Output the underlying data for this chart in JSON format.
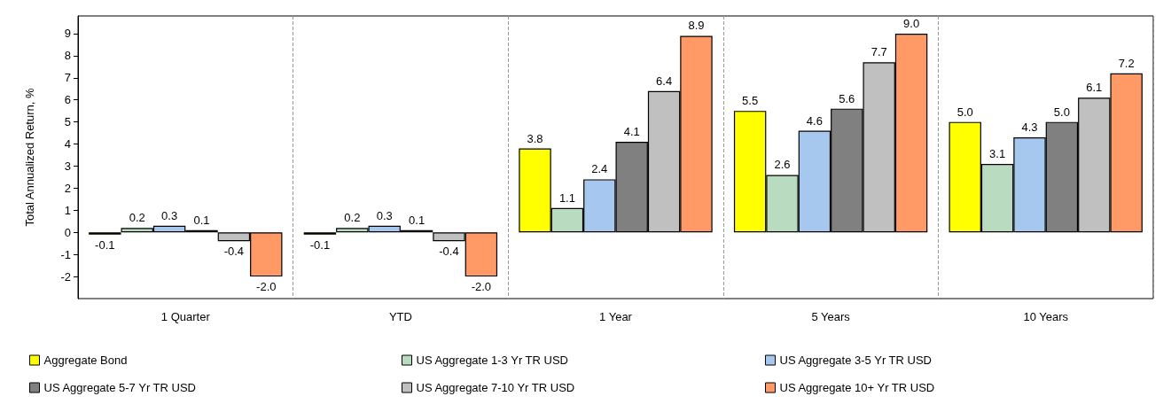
{
  "chart_data": {
    "type": "bar",
    "ylabel": "Total Annualized Return, %",
    "categories": [
      "1 Quarter",
      "YTD",
      "1 Year",
      "5 Years",
      "10 Years"
    ],
    "ylim": [
      -3,
      9.8
    ],
    "yticks": [
      -2,
      -1,
      0,
      1,
      2,
      3,
      4,
      5,
      6,
      7,
      8,
      9
    ],
    "grid": "x",
    "legend": "bottom",
    "series": [
      {
        "name": "Aggregate Bond",
        "color": "#ffff00",
        "values": [
          -0.1,
          -0.1,
          3.8,
          5.5,
          5.0
        ],
        "value_labels": [
          "-0.1",
          "-0.1",
          "3.8",
          "5.5",
          "5.0"
        ]
      },
      {
        "name": "US Aggregate 1-3 Yr TR USD",
        "color": "#b9dcc0",
        "values": [
          0.2,
          0.2,
          1.1,
          2.6,
          3.1
        ],
        "value_labels": [
          "0.2",
          "0.2",
          "1.1",
          "2.6",
          "3.1"
        ]
      },
      {
        "name": "US Aggregate 3-5 Yr TR USD",
        "color": "#a6c8ee",
        "values": [
          0.3,
          0.3,
          2.4,
          4.6,
          4.3
        ],
        "value_labels": [
          "0.3",
          "0.3",
          "2.4",
          "4.6",
          "4.3"
        ]
      },
      {
        "name": "US Aggregate 5-7 Yr TR USD",
        "color": "#808080",
        "values": [
          0.1,
          0.1,
          4.1,
          5.6,
          5.0
        ],
        "value_labels": [
          "0.1",
          "0.1",
          "4.1",
          "5.6",
          "5.0"
        ]
      },
      {
        "name": "US Aggregate 7-10 Yr TR USD",
        "color": "#c0c0c0",
        "values": [
          -0.4,
          -0.4,
          6.4,
          7.7,
          6.1
        ],
        "value_labels": [
          "-0.4",
          "-0.4",
          "6.4",
          "7.7",
          "6.1"
        ]
      },
      {
        "name": "US Aggregate 10+ Yr TR USD",
        "color": "#ff9966",
        "values": [
          -2.0,
          -2.0,
          8.9,
          9.0,
          7.2
        ],
        "value_labels": [
          "-2.0",
          "-2.0",
          "8.9",
          "9.0",
          "7.2"
        ]
      }
    ]
  }
}
